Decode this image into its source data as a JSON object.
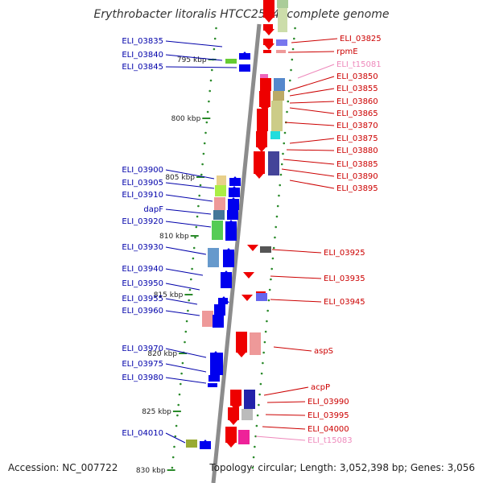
{
  "title": "Erythrobacter litoralis HTCC2594, complete genome",
  "footer": {
    "accession": "Accession: NC_007722",
    "summary": "Topology: circular; Length: 3,052,398 bp; Genes: 3,056"
  },
  "colors": {
    "backbone": "#8c8c8c",
    "tick": "#2a8a2a",
    "left_label": "#0000aa",
    "right_label": "#cc0000",
    "trna_label": "#ee88bb",
    "forward_gene": "#0000ee",
    "reverse_gene": "#ee0000"
  },
  "scale_labels": [
    "795 kbp",
    "800 kbp",
    "805 kbp",
    "810 kbp",
    "815 kbp",
    "820 kbp",
    "825 kbp",
    "830 kbp"
  ],
  "left_genes": [
    "ELI_03835",
    "ELI_03840",
    "ELI_03845",
    "ELI_03900",
    "ELI_03905",
    "ELI_03910",
    "dapF",
    "ELI_03920",
    "ELI_03930",
    "ELI_03940",
    "ELI_03950",
    "ELI_03955",
    "ELI_03960",
    "ELI_03970",
    "ELI_03975",
    "ELI_03980",
    "ELI_04010"
  ],
  "right_genes": [
    "ELI_03825",
    "rpmE",
    "ELI_t15081",
    "ELI_03850",
    "ELI_03855",
    "ELI_03860",
    "ELI_03865",
    "ELI_03870",
    "ELI_03875",
    "ELI_03880",
    "ELI_03885",
    "ELI_03890",
    "ELI_03895",
    "ELI_03925",
    "ELI_03935",
    "ELI_03945",
    "aspS",
    "acpP",
    "ELI_03990",
    "ELI_03995",
    "ELI_04000",
    "ELI_t15083"
  ],
  "trna_genes": [
    "ELI_t15081",
    "ELI_t15083"
  ]
}
